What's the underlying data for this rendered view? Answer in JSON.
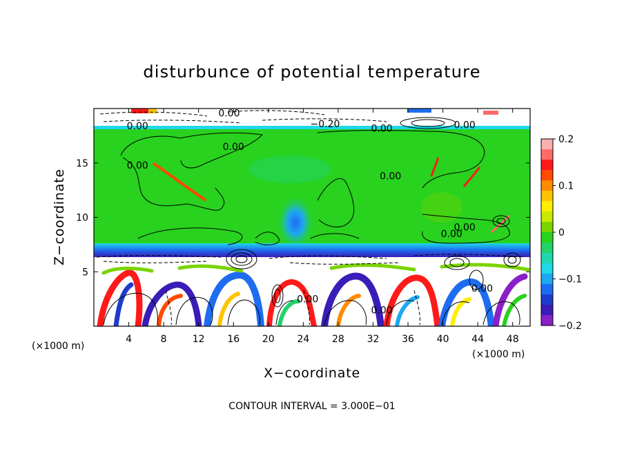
{
  "chart_data": {
    "type": "heatmap",
    "title": "disturbunce of potential temperature",
    "xlabel": "X−coordinate",
    "ylabel": "Z−coordinate",
    "x_unit": "(×1000 m)",
    "y_unit": "(×1000 m)",
    "xlim": [
      0,
      50
    ],
    "ylim": [
      0,
      20
    ],
    "x_ticks": [
      4,
      8,
      12,
      16,
      20,
      24,
      28,
      32,
      36,
      40,
      44,
      48
    ],
    "y_ticks": [
      5,
      10,
      15
    ],
    "footer": "CONTOUR INTERVAL = 3.000E−01",
    "contour_labels": [
      {
        "text": "0.00",
        "x": 5.0,
        "y": 18.4
      },
      {
        "text": "0.00",
        "x": 15.5,
        "y": 19.6
      },
      {
        "text": "0.00",
        "x": 33.0,
        "y": 18.2
      },
      {
        "text": "0.00",
        "x": 42.5,
        "y": 18.5
      },
      {
        "text": "−0.20",
        "x": 26.5,
        "y": 18.6
      },
      {
        "text": "0.00",
        "x": 16.0,
        "y": 16.5
      },
      {
        "text": "0.00",
        "x": 5.0,
        "y": 14.8
      },
      {
        "text": "0.00",
        "x": 34.0,
        "y": 13.8
      },
      {
        "text": "0.00",
        "x": 41.0,
        "y": 8.5
      },
      {
        "text": "0.00",
        "x": 42.5,
        "y": 9.1
      },
      {
        "text": "0.00",
        "x": 24.5,
        "y": 2.5
      },
      {
        "text": "0.00",
        "x": 33.0,
        "y": 1.5
      },
      {
        "text": "0.00",
        "x": 44.5,
        "y": 3.5
      }
    ],
    "colorbar": {
      "ticks": [
        0.2,
        0.1,
        0,
        -0.1,
        -0.2
      ],
      "tick_labels": [
        "0.2",
        "0.1",
        "0",
        "−0.1",
        "−0.2"
      ],
      "colors": [
        "#f8b0b0",
        "#ff6a6a",
        "#ff1a1a",
        "#ff4a00",
        "#ff8c00",
        "#ffc400",
        "#ffee00",
        "#c8e800",
        "#7ad400",
        "#28d21e",
        "#22d36a",
        "#20d8b0",
        "#1ed8e8",
        "#1ea8f0",
        "#1e6cf0",
        "#1e3ccc",
        "#3a1cb8",
        "#8a20c8"
      ]
    }
  }
}
